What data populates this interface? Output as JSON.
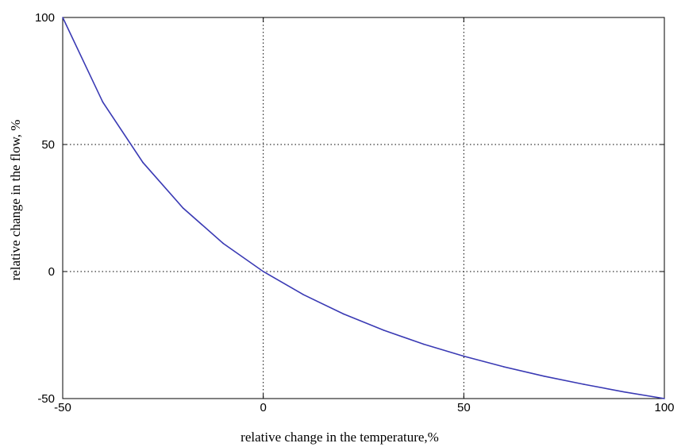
{
  "chart_data": {
    "type": "line",
    "title": "",
    "xlabel": "relative change in the temperature,%",
    "ylabel": "relative change in the flow, %",
    "xlim": [
      -50,
      100
    ],
    "ylim": [
      -50,
      100
    ],
    "xticks": [
      -50,
      0,
      50,
      100
    ],
    "yticks": [
      -50,
      0,
      50,
      100
    ],
    "xtick_labels": [
      "-50",
      "0",
      "50",
      "100"
    ],
    "ytick_labels": [
      "-50",
      "0",
      "50",
      "100"
    ],
    "grid": true,
    "legend": "none",
    "series": [
      {
        "color": "#3a3ab4",
        "x": [
          -50,
          -40,
          -30,
          -20,
          -10,
          0,
          10,
          20,
          30,
          40,
          50,
          60,
          70,
          80,
          90,
          100
        ],
        "y": [
          100,
          66.7,
          42.9,
          25.0,
          11.1,
          0,
          -9.1,
          -16.7,
          -23.1,
          -28.6,
          -33.3,
          -37.5,
          -41.2,
          -44.4,
          -47.4,
          -50.0
        ]
      }
    ]
  }
}
